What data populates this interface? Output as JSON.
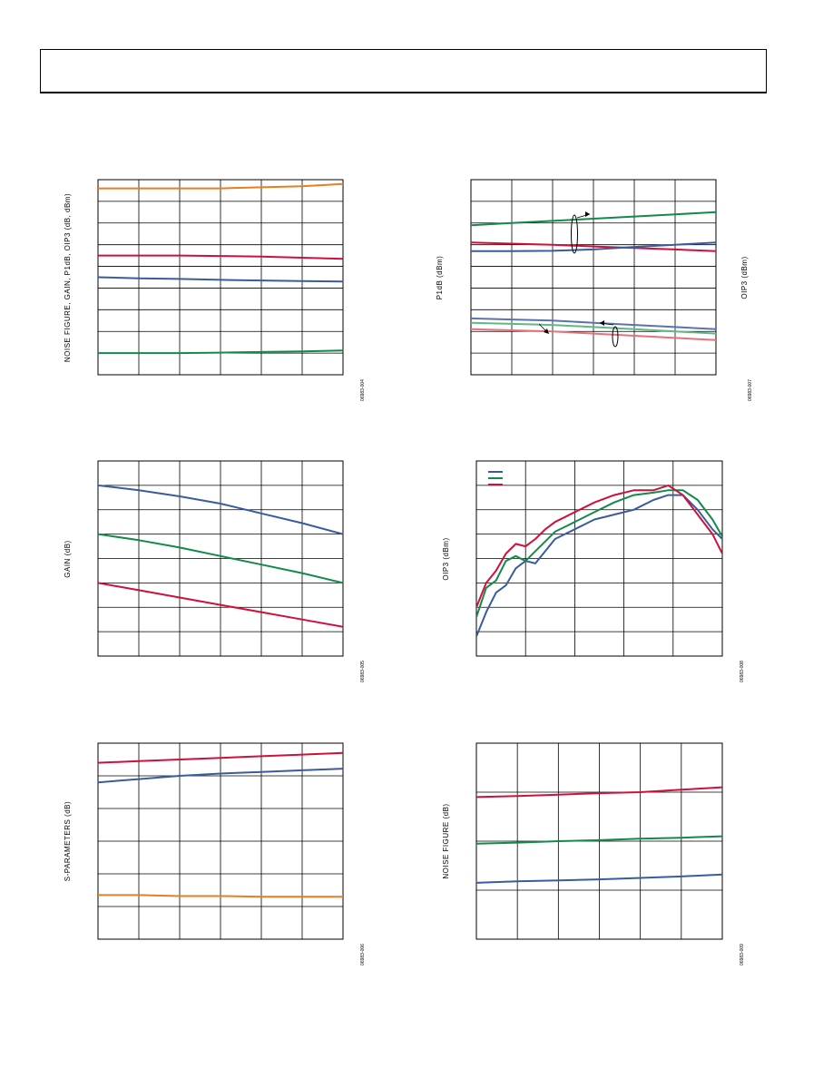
{
  "charts": [
    {
      "id": "chart-1",
      "chart_data": {
        "type": "line",
        "ylabel": "NOISE FIGURE, GAIN, P1dB, OIP3 (dB, dBm)",
        "figure_number": "06983-004",
        "grid": {
          "cols": 6,
          "rows": 9
        },
        "xlim": [
          0,
          6
        ],
        "ylim": [
          0,
          9
        ],
        "series": [
          {
            "color": "#e67e22",
            "x": [
              0,
              1,
              2,
              3,
              4,
              5,
              6
            ],
            "values": [
              8.6,
              8.6,
              8.6,
              8.6,
              8.65,
              8.7,
              8.8
            ]
          },
          {
            "color": "#d0103a",
            "x": [
              0,
              1,
              2,
              3,
              4,
              5,
              6
            ],
            "values": [
              5.5,
              5.5,
              5.5,
              5.48,
              5.45,
              5.4,
              5.35
            ]
          },
          {
            "color": "#3a5ba0",
            "x": [
              0,
              1,
              2,
              3,
              4,
              5,
              6
            ],
            "values": [
              4.5,
              4.45,
              4.42,
              4.38,
              4.35,
              4.32,
              4.3
            ]
          },
          {
            "color": "#138a4a",
            "x": [
              0,
              1,
              2,
              3,
              4,
              5,
              6
            ],
            "values": [
              1.0,
              1.0,
              1.0,
              1.02,
              1.05,
              1.08,
              1.12
            ]
          }
        ]
      }
    },
    {
      "id": "chart-2",
      "chart_data": {
        "type": "line",
        "ylabel": "P1dB (dBm)",
        "ylabel2": "OIP3 (dBm)",
        "figure_number": "06983-007",
        "grid": {
          "cols": 6,
          "rows": 9
        },
        "xlim": [
          0,
          6
        ],
        "ylim": [
          0,
          9
        ],
        "series": [
          {
            "color": "#138a4a",
            "x": [
              0,
              1,
              2,
              3,
              4,
              5,
              6
            ],
            "values": [
              6.9,
              7.0,
              7.1,
              7.2,
              7.3,
              7.4,
              7.5
            ]
          },
          {
            "color": "#d0103a",
            "x": [
              0,
              1,
              2,
              3,
              4,
              5,
              6
            ],
            "values": [
              6.1,
              6.05,
              6.0,
              5.92,
              5.85,
              5.78,
              5.7
            ]
          },
          {
            "color": "#3a5ba0",
            "x": [
              0,
              1,
              2,
              3,
              4,
              5,
              6
            ],
            "values": [
              5.7,
              5.7,
              5.72,
              5.78,
              5.9,
              6.0,
              6.1
            ]
          },
          {
            "color": "#5a73b0",
            "x": [
              0,
              1,
              2,
              3,
              4,
              5,
              6
            ],
            "values": [
              2.6,
              2.55,
              2.5,
              2.4,
              2.3,
              2.2,
              2.1
            ]
          },
          {
            "color": "#5fb885",
            "x": [
              0,
              1,
              2,
              3,
              4,
              5,
              6
            ],
            "values": [
              2.4,
              2.35,
              2.3,
              2.2,
              2.1,
              2.0,
              1.9
            ]
          },
          {
            "color": "#e8707a",
            "x": [
              0,
              1,
              2,
              3,
              4,
              5,
              6
            ],
            "values": [
              2.1,
              2.05,
              2.0,
              1.9,
              1.8,
              1.7,
              1.6
            ]
          }
        ]
      }
    },
    {
      "id": "chart-3",
      "chart_data": {
        "type": "line",
        "ylabel": "GAIN (dB)",
        "figure_number": "06983-005",
        "grid": {
          "cols": 6,
          "rows": 8
        },
        "xlim": [
          0,
          6
        ],
        "ylim": [
          0,
          8
        ],
        "series": [
          {
            "color": "#3a5ba0",
            "x": [
              0,
              1,
              2,
              3,
              4,
              5,
              6
            ],
            "values": [
              7.0,
              6.8,
              6.55,
              6.25,
              5.85,
              5.45,
              5.0
            ]
          },
          {
            "color": "#138a4a",
            "x": [
              0,
              1,
              2,
              3,
              4,
              5,
              6
            ],
            "values": [
              5.0,
              4.75,
              4.45,
              4.1,
              3.75,
              3.4,
              3.0
            ]
          },
          {
            "color": "#d0103a",
            "x": [
              0,
              1,
              2,
              3,
              4,
              5,
              6
            ],
            "values": [
              3.0,
              2.7,
              2.4,
              2.1,
              1.8,
              1.5,
              1.2
            ]
          }
        ]
      }
    },
    {
      "id": "chart-4",
      "chart_data": {
        "type": "line",
        "ylabel": "OIP3 (dBm)",
        "figure_number": "06983-008",
        "legend": "top-left",
        "grid": {
          "cols": 5,
          "rows": 8
        },
        "xlim": [
          0,
          5
        ],
        "ylim": [
          0,
          8
        ],
        "series": [
          {
            "color": "#3a5ba0",
            "x": [
              0,
              0.2,
              0.4,
              0.6,
              0.8,
              1.0,
              1.2,
              1.4,
              1.6,
              1.8,
              2.0,
              2.4,
              2.8,
              3.2,
              3.6,
              3.9,
              4.2,
              4.5,
              4.8,
              5.0
            ],
            "values": [
              0.8,
              1.8,
              2.6,
              2.9,
              3.6,
              3.9,
              3.8,
              4.3,
              4.8,
              5.0,
              5.2,
              5.6,
              5.8,
              6.0,
              6.4,
              6.6,
              6.6,
              6.0,
              5.2,
              4.8
            ]
          },
          {
            "color": "#138a4a",
            "x": [
              0,
              0.2,
              0.4,
              0.6,
              0.8,
              1.0,
              1.2,
              1.4,
              1.6,
              1.8,
              2.0,
              2.4,
              2.8,
              3.2,
              3.6,
              3.9,
              4.2,
              4.5,
              4.8,
              5.0
            ],
            "values": [
              1.6,
              2.8,
              3.1,
              3.9,
              4.1,
              3.9,
              4.3,
              4.7,
              5.1,
              5.3,
              5.5,
              5.9,
              6.3,
              6.6,
              6.7,
              6.8,
              6.8,
              6.4,
              5.6,
              4.9
            ]
          },
          {
            "color": "#d0103a",
            "x": [
              0,
              0.2,
              0.4,
              0.6,
              0.8,
              1.0,
              1.2,
              1.4,
              1.6,
              1.8,
              2.0,
              2.4,
              2.8,
              3.2,
              3.6,
              3.9,
              4.2,
              4.5,
              4.8,
              5.0
            ],
            "values": [
              2.0,
              3.0,
              3.5,
              4.2,
              4.6,
              4.5,
              4.8,
              5.2,
              5.5,
              5.7,
              5.9,
              6.3,
              6.6,
              6.8,
              6.8,
              7.0,
              6.6,
              5.8,
              5.0,
              4.2
            ]
          }
        ]
      }
    },
    {
      "id": "chart-5",
      "chart_data": {
        "type": "line",
        "ylabel": "S-PARAMETERS (dB)",
        "figure_number": "06983-006",
        "grid": {
          "cols": 6,
          "rows": 6
        },
        "xlim": [
          0,
          6
        ],
        "ylim": [
          0,
          6
        ],
        "series": [
          {
            "color": "#d0103a",
            "x": [
              0,
              1,
              2,
              3,
              4,
              5,
              6
            ],
            "values": [
              5.4,
              5.45,
              5.5,
              5.55,
              5.6,
              5.65,
              5.7
            ]
          },
          {
            "color": "#3a5ba0",
            "x": [
              0,
              1,
              2,
              3,
              4,
              5,
              6
            ],
            "values": [
              4.8,
              4.9,
              5.0,
              5.07,
              5.12,
              5.17,
              5.22
            ]
          },
          {
            "color": "#e67e22",
            "x": [
              0,
              1,
              2,
              3,
              4,
              5,
              6
            ],
            "values": [
              1.35,
              1.35,
              1.32,
              1.32,
              1.3,
              1.3,
              1.3
            ]
          }
        ]
      }
    },
    {
      "id": "chart-6",
      "chart_data": {
        "type": "line",
        "ylabel": "NOISE FIGURE (dB)",
        "figure_number": "06983-009",
        "grid": {
          "cols": 6,
          "rows": 4
        },
        "xlim": [
          0,
          6
        ],
        "ylim": [
          0,
          4
        ],
        "series": [
          {
            "color": "#d0103a",
            "x": [
              0,
              1,
              2,
              3,
              4,
              5,
              6
            ],
            "values": [
              2.9,
              2.92,
              2.95,
              2.98,
              3.0,
              3.05,
              3.1
            ]
          },
          {
            "color": "#138a4a",
            "x": [
              0,
              1,
              2,
              3,
              4,
              5,
              6
            ],
            "values": [
              1.95,
              1.97,
              2.0,
              2.02,
              2.05,
              2.07,
              2.1
            ]
          },
          {
            "color": "#3a5ba0",
            "x": [
              0,
              1,
              2,
              3,
              4,
              5,
              6
            ],
            "values": [
              1.15,
              1.18,
              1.2,
              1.22,
              1.25,
              1.28,
              1.32
            ]
          }
        ]
      }
    }
  ]
}
